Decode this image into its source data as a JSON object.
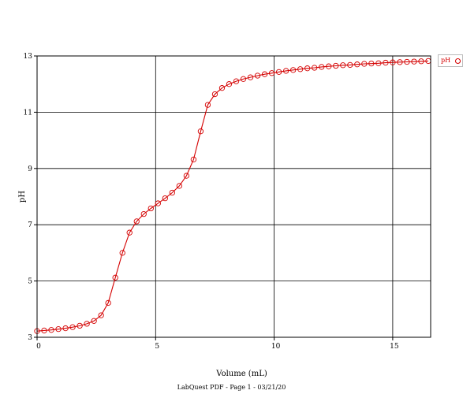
{
  "chart_data": {
    "type": "line",
    "title": "",
    "xlabel": "Volume (mL)",
    "ylabel": "pH",
    "xlim": [
      0,
      16.6
    ],
    "ylim": [
      3,
      13
    ],
    "xticks": [
      0,
      5,
      10,
      15
    ],
    "yticks": [
      3,
      5,
      7,
      9,
      11,
      13
    ],
    "grid": true,
    "legend_position": "right",
    "series": [
      {
        "name": "pH",
        "color": "#d40000",
        "marker": "open-circle",
        "x": [
          0.0,
          0.3,
          0.6,
          0.9,
          1.2,
          1.5,
          1.8,
          2.1,
          2.4,
          2.7,
          3.0,
          3.3,
          3.6,
          3.9,
          4.2,
          4.5,
          4.8,
          5.1,
          5.4,
          5.7,
          6.0,
          6.3,
          6.6,
          6.9,
          7.2,
          7.5,
          7.8,
          8.1,
          8.4,
          8.7,
          9.0,
          9.3,
          9.6,
          9.9,
          10.2,
          10.5,
          10.8,
          11.1,
          11.4,
          11.7,
          12.0,
          12.3,
          12.6,
          12.9,
          13.2,
          13.5,
          13.8,
          14.1,
          14.4,
          14.7,
          15.0,
          15.3,
          15.6,
          15.9,
          16.2,
          16.5
        ],
        "y": [
          3.22,
          3.24,
          3.26,
          3.29,
          3.32,
          3.36,
          3.41,
          3.48,
          3.58,
          3.78,
          4.22,
          5.12,
          6.0,
          6.72,
          7.12,
          7.38,
          7.58,
          7.76,
          7.94,
          8.14,
          8.38,
          8.74,
          9.32,
          10.32,
          11.26,
          11.64,
          11.86,
          12.0,
          12.1,
          12.18,
          12.24,
          12.3,
          12.35,
          12.39,
          12.43,
          12.47,
          12.5,
          12.53,
          12.56,
          12.58,
          12.61,
          12.63,
          12.65,
          12.67,
          12.68,
          12.7,
          12.72,
          12.73,
          12.74,
          12.76,
          12.77,
          12.78,
          12.79,
          12.8,
          12.81,
          12.82
        ]
      }
    ]
  },
  "footer": {
    "text": "LabQuest PDF - Page 1 - 03/21/20"
  },
  "legend": {
    "label": "pH"
  }
}
